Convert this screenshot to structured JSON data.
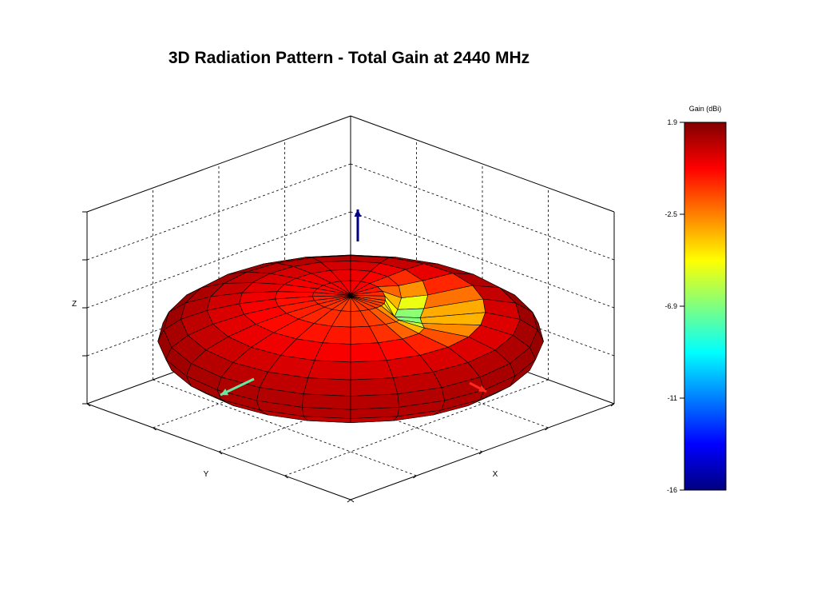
{
  "chart_data": {
    "type": "surface3d",
    "title": "3D Radiation Pattern - Total Gain at 2440 MHz",
    "xlabel": "X",
    "ylabel": "Y",
    "zlabel": "Z",
    "grid": true,
    "colormap": "jet",
    "colorbar": {
      "title": "Gain (dBi)",
      "placement": "right",
      "ticks": [
        "1.9",
        "-2.5",
        "-6.9",
        "-11",
        "-16"
      ],
      "range": [
        -16,
        1.9
      ]
    },
    "axis_arrows": {
      "x": "#ff2a1a",
      "y": "#66e8a0",
      "z": "#000080"
    },
    "pattern": {
      "peak_gain_dbi": 1.9,
      "null_gain_dbi": -16,
      "shape": "toroidal with dip near +Z axis"
    }
  }
}
